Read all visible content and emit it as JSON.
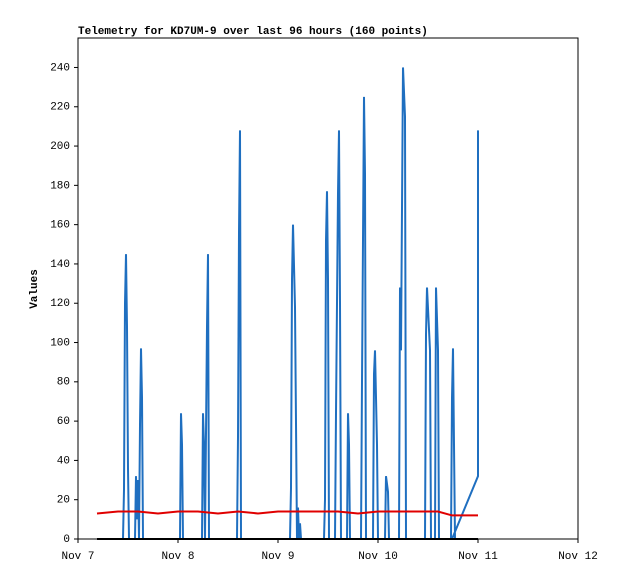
{
  "chart_data": {
    "type": "line",
    "title": "Telemetry for KD7UM-9 over last 96 hours (160 points)",
    "ylabel": "Values",
    "xlim": [
      7,
      12
    ],
    "xticks": [
      {
        "value": 7,
        "label": "Nov 7"
      },
      {
        "value": 8,
        "label": "Nov 8"
      },
      {
        "value": 9,
        "label": "Nov 9"
      },
      {
        "value": 10,
        "label": "Nov 10"
      },
      {
        "value": 11,
        "label": "Nov 11"
      },
      {
        "value": 12,
        "label": "Nov 12"
      }
    ],
    "ylim": [
      0,
      255
    ],
    "yticks": [
      0,
      20,
      40,
      60,
      80,
      100,
      120,
      140,
      160,
      180,
      200,
      220,
      240
    ],
    "grid": false,
    "series": [
      {
        "color": "#1f6fc0",
        "x": [
          7.19,
          7.45,
          7.46,
          7.47,
          7.48,
          7.49,
          7.5,
          7.51,
          7.57,
          7.58,
          7.59,
          7.6,
          7.61,
          7.62,
          7.63,
          7.64,
          7.65,
          8.02,
          8.03,
          8.04,
          8.05,
          8.24,
          8.25,
          8.26,
          8.27,
          8.29,
          8.3,
          8.31,
          8.59,
          8.6,
          8.61,
          8.62,
          8.63,
          9.12,
          9.13,
          9.14,
          9.15,
          9.17,
          9.19,
          9.2,
          9.21,
          9.22,
          9.23,
          9.46,
          9.47,
          9.48,
          9.49,
          9.5,
          9.51,
          9.57,
          9.58,
          9.6,
          9.61,
          9.62,
          9.63,
          9.69,
          9.7,
          9.71,
          9.72,
          9.83,
          9.84,
          9.86,
          9.87,
          9.88,
          9.95,
          9.96,
          9.97,
          9.99,
          10.0,
          10.07,
          10.08,
          10.1,
          10.11,
          10.21,
          10.22,
          10.23,
          10.25,
          10.27,
          10.28,
          10.47,
          10.48,
          10.49,
          10.52,
          10.53,
          10.57,
          10.58,
          10.6,
          10.61,
          10.73,
          10.74,
          10.75,
          10.76,
          10.77,
          10.74,
          11.0,
          11.0,
          11.0
        ],
        "values": [
          0,
          0,
          25,
          120,
          145,
          108,
          36,
          0,
          0,
          32,
          10,
          30,
          0,
          58,
          97,
          72,
          0,
          0,
          64,
          48,
          0,
          0,
          64,
          48,
          0,
          108,
          145,
          0,
          0,
          52,
          156,
          208,
          0,
          0,
          26,
          132,
          160,
          118,
          0,
          16,
          0,
          8,
          0,
          0,
          20,
          152,
          177,
          132,
          0,
          0,
          64,
          176,
          208,
          120,
          0,
          0,
          64,
          48,
          0,
          0,
          80,
          225,
          186,
          0,
          0,
          84,
          96,
          48,
          0,
          0,
          32,
          24,
          0,
          0,
          128,
          96,
          240,
          215,
          0,
          0,
          104,
          128,
          96,
          0,
          0,
          128,
          96,
          0,
          0,
          72,
          97,
          48,
          0,
          0,
          32,
          104,
          208
        ]
      },
      {
        "color": "#e00000",
        "x": [
          7.19,
          7.4,
          7.6,
          7.8,
          8.0,
          8.2,
          8.4,
          8.6,
          8.8,
          9.0,
          9.2,
          9.4,
          9.6,
          9.8,
          10.0,
          10.2,
          10.4,
          10.6,
          10.74,
          11.0
        ],
        "values": [
          13,
          14,
          14,
          13,
          14,
          14,
          13,
          14,
          13,
          14,
          14,
          14,
          14,
          13,
          14,
          14,
          14,
          14,
          12,
          12
        ]
      },
      {
        "color": "#000000",
        "x": [
          7.19,
          11.0
        ],
        "values": [
          0,
          0
        ]
      }
    ]
  }
}
